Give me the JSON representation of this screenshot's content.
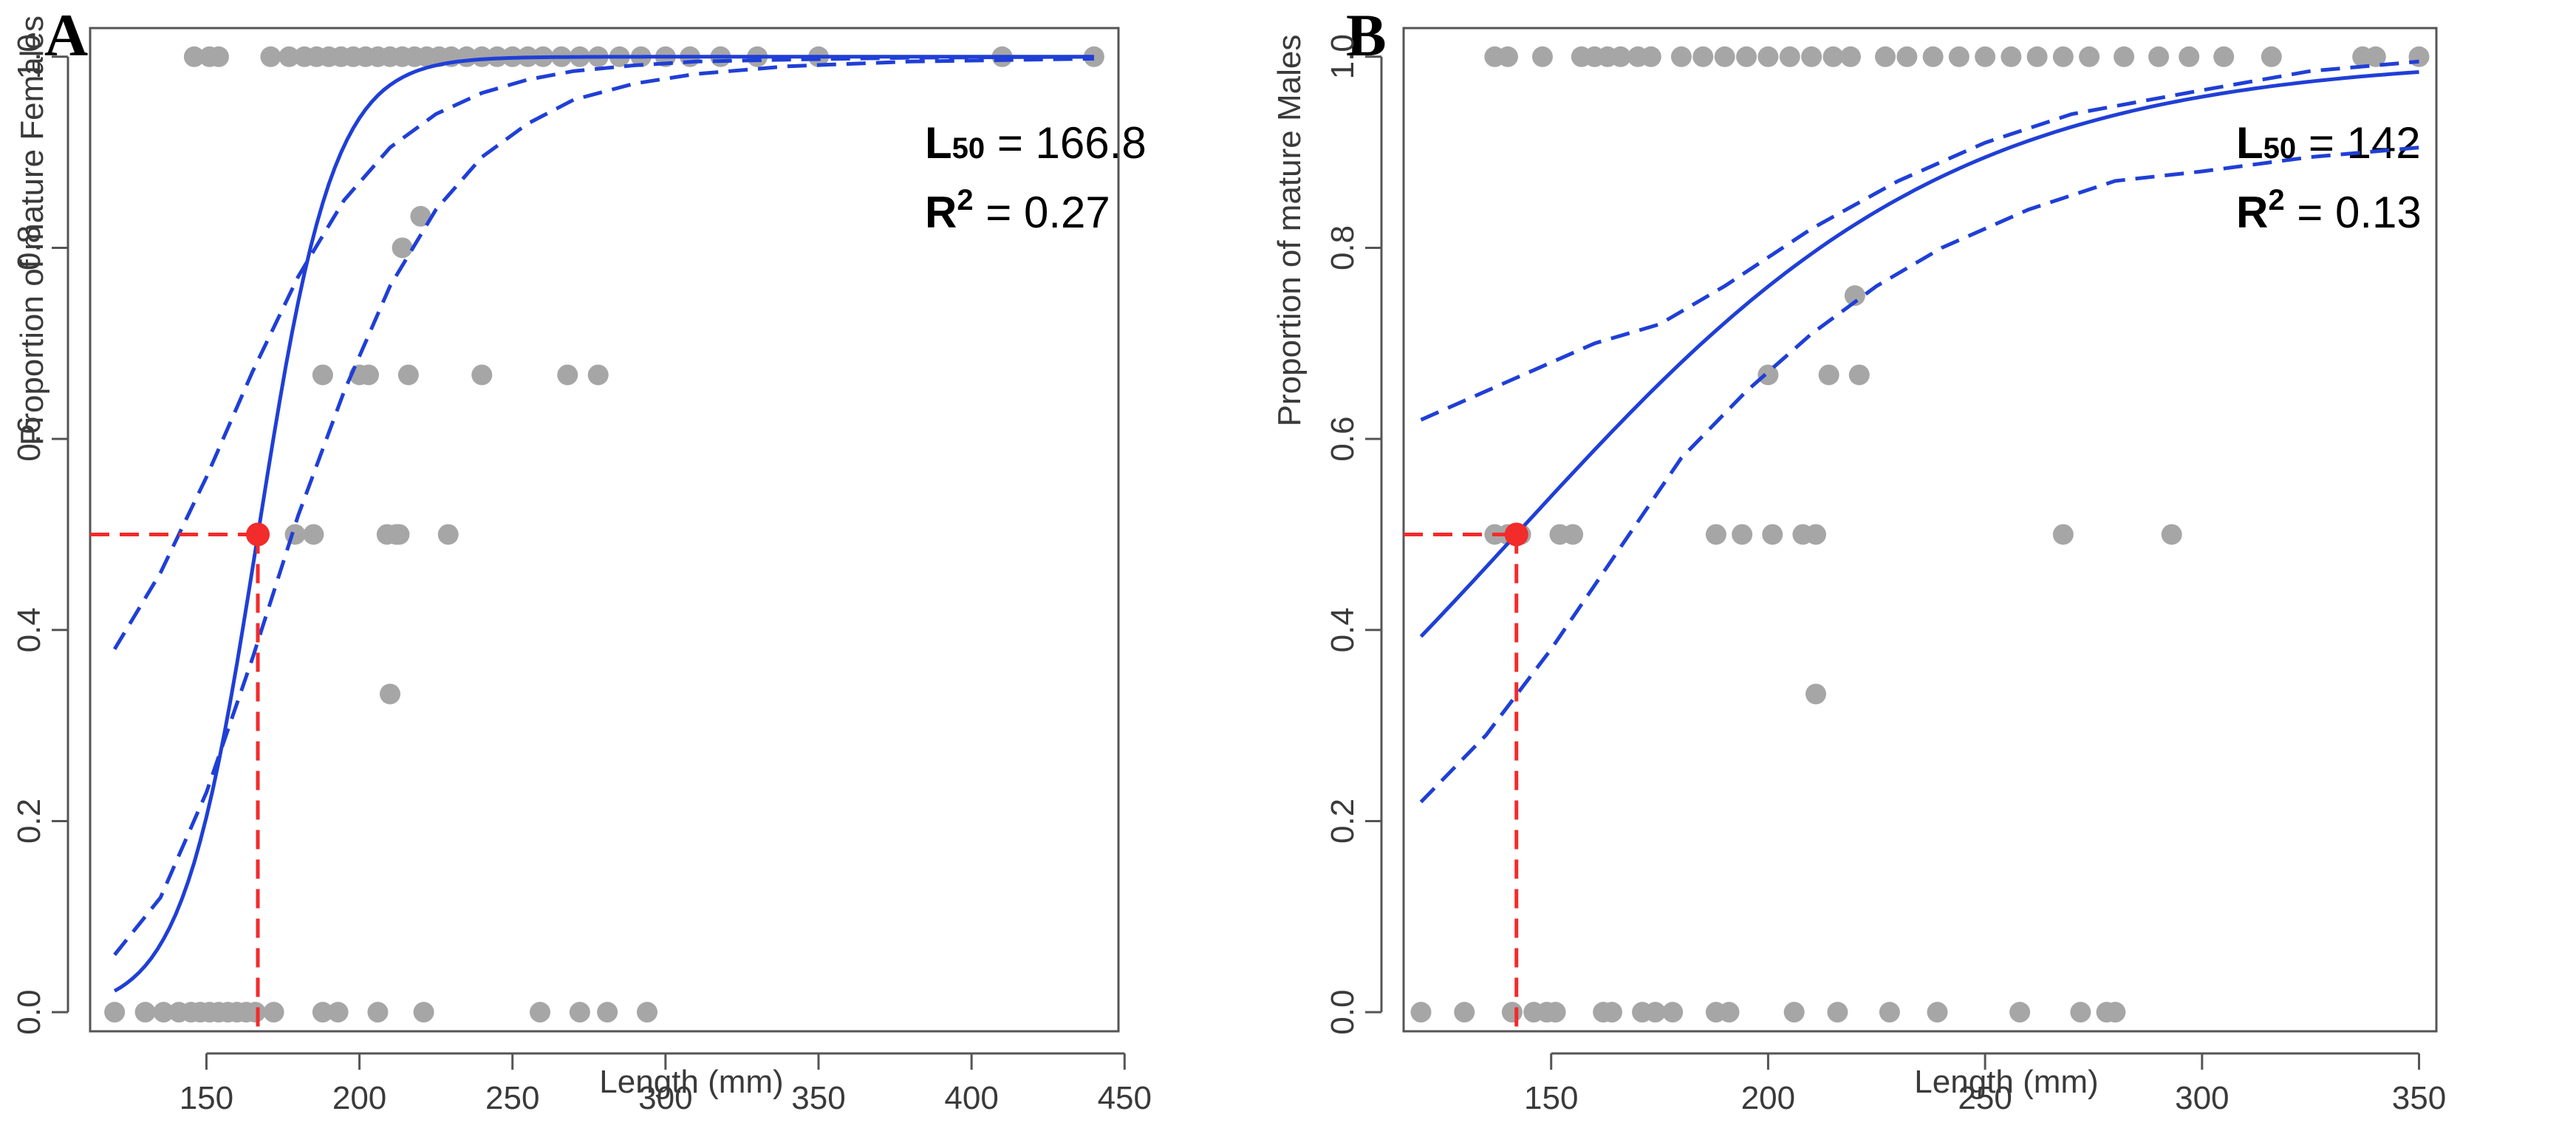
{
  "chart_data": [
    {
      "type": "scatter",
      "panel_label": "A",
      "xlabel": "Length (mm)",
      "ylabel": "Proportion of mature Females",
      "xlim": [
        112,
        448
      ],
      "ylim": [
        -0.02,
        1.03
      ],
      "xticks": [
        150,
        200,
        250,
        300,
        350,
        400,
        450
      ],
      "yticks": [
        0.0,
        0.2,
        0.4,
        0.6,
        0.8,
        1.0
      ],
      "grid": false,
      "logistic": {
        "a": -13.48,
        "b": 0.0808,
        "xmin": 120,
        "xmax": 440
      },
      "ci_lower": [
        [
          120,
          0.06
        ],
        [
          135,
          0.12
        ],
        [
          150,
          0.23
        ],
        [
          165,
          0.37
        ],
        [
          180,
          0.52
        ],
        [
          195,
          0.65
        ],
        [
          210,
          0.76
        ],
        [
          225,
          0.84
        ],
        [
          240,
          0.895
        ],
        [
          255,
          0.93
        ],
        [
          270,
          0.955
        ],
        [
          290,
          0.972
        ],
        [
          310,
          0.982
        ],
        [
          340,
          0.99
        ],
        [
          380,
          0.995
        ],
        [
          440,
          0.998
        ]
      ],
      "ci_upper": [
        [
          120,
          0.38
        ],
        [
          135,
          0.46
        ],
        [
          150,
          0.56
        ],
        [
          165,
          0.67
        ],
        [
          180,
          0.77
        ],
        [
          195,
          0.85
        ],
        [
          210,
          0.905
        ],
        [
          225,
          0.94
        ],
        [
          240,
          0.962
        ],
        [
          255,
          0.976
        ],
        [
          270,
          0.985
        ],
        [
          290,
          0.991
        ],
        [
          310,
          0.995
        ],
        [
          340,
          0.997
        ],
        [
          380,
          0.999
        ],
        [
          440,
          1.0
        ]
      ],
      "l50": 166.8,
      "annotations": {
        "l50_label": "L",
        "l50_sub": "50",
        "l50_value": " = 166.8",
        "r2_label": "R",
        "r2_sup": "2",
        "r2_value": " = 0.27"
      },
      "points": [
        [
          120,
          0
        ],
        [
          130,
          0
        ],
        [
          136,
          0
        ],
        [
          141,
          0
        ],
        [
          145,
          0
        ],
        [
          148,
          0
        ],
        [
          151,
          0
        ],
        [
          154,
          0
        ],
        [
          157,
          0
        ],
        [
          160,
          0
        ],
        [
          163,
          0
        ],
        [
          166,
          0
        ],
        [
          172,
          0
        ],
        [
          188,
          0
        ],
        [
          193,
          0
        ],
        [
          206,
          0
        ],
        [
          221,
          0
        ],
        [
          259,
          0
        ],
        [
          272,
          0
        ],
        [
          281,
          0
        ],
        [
          294,
          0
        ],
        [
          210,
          0.333
        ],
        [
          179,
          0.5
        ],
        [
          185,
          0.5
        ],
        [
          209,
          0.5
        ],
        [
          212,
          0.5
        ],
        [
          213,
          0.5
        ],
        [
          229,
          0.5
        ],
        [
          188,
          0.667
        ],
        [
          200,
          0.667
        ],
        [
          203,
          0.667
        ],
        [
          216,
          0.667
        ],
        [
          240,
          0.667
        ],
        [
          268,
          0.667
        ],
        [
          278,
          0.667
        ],
        [
          214,
          0.8
        ],
        [
          220,
          0.833
        ],
        [
          146,
          1
        ],
        [
          151,
          1
        ],
        [
          154,
          1
        ],
        [
          171,
          1
        ],
        [
          177,
          1
        ],
        [
          182,
          1
        ],
        [
          186,
          1
        ],
        [
          190,
          1
        ],
        [
          194,
          1
        ],
        [
          198,
          1
        ],
        [
          202,
          1
        ],
        [
          206,
          1
        ],
        [
          210,
          1
        ],
        [
          214,
          1
        ],
        [
          218,
          1
        ],
        [
          222,
          1
        ],
        [
          226,
          1
        ],
        [
          230,
          1
        ],
        [
          235,
          1
        ],
        [
          240,
          1
        ],
        [
          245,
          1
        ],
        [
          250,
          1
        ],
        [
          255,
          1
        ],
        [
          260,
          1
        ],
        [
          266,
          1
        ],
        [
          272,
          1
        ],
        [
          278,
          1
        ],
        [
          285,
          1
        ],
        [
          292,
          1
        ],
        [
          300,
          1
        ],
        [
          308,
          1
        ],
        [
          318,
          1
        ],
        [
          330,
          1
        ],
        [
          350,
          1
        ],
        [
          410,
          1
        ],
        [
          440,
          1
        ]
      ]
    },
    {
      "type": "scatter",
      "panel_label": "B",
      "xlabel": "Length (mm)",
      "ylabel": "Proportion of mature Males",
      "xlim": [
        116,
        354
      ],
      "ylim": [
        -0.02,
        1.03
      ],
      "xticks": [
        150,
        200,
        250,
        300,
        350
      ],
      "yticks": [
        0.0,
        0.2,
        0.4,
        0.6,
        0.8,
        1.0
      ],
      "grid": false,
      "logistic": {
        "a": -2.81,
        "b": 0.0198,
        "xmin": 120,
        "xmax": 350
      },
      "ci_lower": [
        [
          120,
          0.22
        ],
        [
          135,
          0.29
        ],
        [
          150,
          0.38
        ],
        [
          165,
          0.48
        ],
        [
          180,
          0.58
        ],
        [
          195,
          0.65
        ],
        [
          210,
          0.71
        ],
        [
          225,
          0.76
        ],
        [
          240,
          0.8
        ],
        [
          260,
          0.84
        ],
        [
          280,
          0.87
        ],
        [
          300,
          0.88
        ],
        [
          325,
          0.895
        ],
        [
          350,
          0.905
        ]
      ],
      "ci_upper": [
        [
          120,
          0.62
        ],
        [
          140,
          0.66
        ],
        [
          160,
          0.7
        ],
        [
          175,
          0.72
        ],
        [
          190,
          0.76
        ],
        [
          210,
          0.82
        ],
        [
          230,
          0.87
        ],
        [
          250,
          0.91
        ],
        [
          270,
          0.94
        ],
        [
          300,
          0.965
        ],
        [
          325,
          0.985
        ],
        [
          350,
          0.995
        ]
      ],
      "l50": 142,
      "annotations": {
        "l50_label": "L",
        "l50_sub": "50",
        "l50_value": " = 142",
        "r2_label": "R",
        "r2_sup": "2",
        "r2_value": " = 0.13"
      },
      "points": [
        [
          120,
          0
        ],
        [
          130,
          0
        ],
        [
          141,
          0
        ],
        [
          146,
          0
        ],
        [
          149,
          0
        ],
        [
          151,
          0
        ],
        [
          162,
          0
        ],
        [
          164,
          0
        ],
        [
          171,
          0
        ],
        [
          174,
          0
        ],
        [
          178,
          0
        ],
        [
          188,
          0
        ],
        [
          191,
          0
        ],
        [
          206,
          0
        ],
        [
          216,
          0
        ],
        [
          228,
          0
        ],
        [
          239,
          0
        ],
        [
          258,
          0
        ],
        [
          272,
          0
        ],
        [
          278,
          0
        ],
        [
          280,
          0
        ],
        [
          211,
          0.333
        ],
        [
          137,
          0.5
        ],
        [
          140,
          0.5
        ],
        [
          143,
          0.5
        ],
        [
          152,
          0.5
        ],
        [
          155,
          0.5
        ],
        [
          188,
          0.5
        ],
        [
          194,
          0.5
        ],
        [
          201,
          0.5
        ],
        [
          208,
          0.5
        ],
        [
          211,
          0.5
        ],
        [
          268,
          0.5
        ],
        [
          293,
          0.5
        ],
        [
          200,
          0.667
        ],
        [
          214,
          0.667
        ],
        [
          221,
          0.667
        ],
        [
          220,
          0.75
        ],
        [
          137,
          1
        ],
        [
          140,
          1
        ],
        [
          148,
          1
        ],
        [
          157,
          1
        ],
        [
          160,
          1
        ],
        [
          163,
          1
        ],
        [
          166,
          1
        ],
        [
          170,
          1
        ],
        [
          173,
          1
        ],
        [
          180,
          1
        ],
        [
          185,
          1
        ],
        [
          190,
          1
        ],
        [
          195,
          1
        ],
        [
          200,
          1
        ],
        [
          205,
          1
        ],
        [
          210,
          1
        ],
        [
          215,
          1
        ],
        [
          219,
          1
        ],
        [
          227,
          1
        ],
        [
          232,
          1
        ],
        [
          238,
          1
        ],
        [
          244,
          1
        ],
        [
          250,
          1
        ],
        [
          256,
          1
        ],
        [
          262,
          1
        ],
        [
          268,
          1
        ],
        [
          274,
          1
        ],
        [
          282,
          1
        ],
        [
          290,
          1
        ],
        [
          297,
          1
        ],
        [
          305,
          1
        ],
        [
          316,
          1
        ],
        [
          337,
          1
        ],
        [
          340,
          1
        ],
        [
          350,
          1
        ]
      ]
    }
  ]
}
